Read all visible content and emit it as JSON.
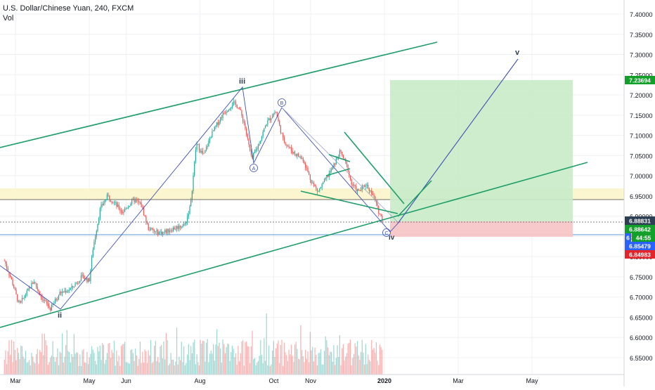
{
  "header": {
    "symbol_line": "U.S. Dollar/Chinese Yuan, 240, FXCM",
    "volume_label": "Vol"
  },
  "colors": {
    "grid": "#eef0f3",
    "up": "#26a69a",
    "down": "#ef5350",
    "text": "#131722",
    "channel": "#1e9e6a",
    "blue_line": "#3f51b5",
    "target_fill": "#c8ebc8",
    "stop_fill": "#f8c6c8",
    "zone_fill": "#fbf4c8",
    "label_green": "#13a02a",
    "label_dark": "#2d3f52",
    "label_blue": "#2962ff",
    "label_red": "#e3242b"
  },
  "chart_data": {
    "type": "candlestick",
    "instrument": "U.S. Dollar/Chinese Yuan",
    "interval": "240",
    "source": "FXCM",
    "ylim": [
      6.5,
      7.42
    ],
    "y_ticks": [
      "7.40000",
      "7.35000",
      "7.30000",
      "7.25000",
      "7.20000",
      "7.15000",
      "7.10000",
      "7.05000",
      "7.00000",
      "6.95000",
      "6.90000",
      "6.85000",
      "6.80000",
      "6.75000",
      "6.70000",
      "6.65000",
      "6.60000",
      "6.55000"
    ],
    "y_tick_values": [
      7.4,
      7.35,
      7.3,
      7.25,
      7.2,
      7.15,
      7.1,
      7.05,
      7.0,
      6.95,
      6.9,
      6.85,
      6.8,
      6.75,
      6.7,
      6.65,
      6.6,
      6.55
    ],
    "x_ticks": [
      "Mar",
      "May",
      "Jun",
      "Aug",
      "Oct",
      "Nov",
      "2020",
      "Mar",
      "May"
    ],
    "x_tick_months": [
      1,
      3,
      4,
      6,
      8,
      9,
      11,
      13,
      15
    ],
    "x_domain_months": [
      0.7,
      16.5
    ],
    "price_path": [
      [
        0.7,
        6.79
      ],
      [
        0.9,
        6.74
      ],
      [
        1.1,
        6.68
      ],
      [
        1.3,
        6.71
      ],
      [
        1.5,
        6.74
      ],
      [
        1.7,
        6.7
      ],
      [
        1.95,
        6.67
      ],
      [
        2.2,
        6.71
      ],
      [
        2.5,
        6.72
      ],
      [
        2.8,
        6.75
      ],
      [
        3.0,
        6.74
      ],
      [
        3.1,
        6.82
      ],
      [
        3.3,
        6.92
      ],
      [
        3.5,
        6.95
      ],
      [
        3.7,
        6.93
      ],
      [
        3.9,
        6.91
      ],
      [
        4.2,
        6.94
      ],
      [
        4.4,
        6.93
      ],
      [
        4.6,
        6.87
      ],
      [
        4.8,
        6.86
      ],
      [
        5.0,
        6.86
      ],
      [
        5.3,
        6.87
      ],
      [
        5.6,
        6.88
      ],
      [
        5.75,
        6.93
      ],
      [
        5.9,
        7.08
      ],
      [
        6.1,
        7.05
      ],
      [
        6.3,
        7.1
      ],
      [
        6.6,
        7.15
      ],
      [
        6.9,
        7.18
      ],
      [
        7.05,
        7.17
      ],
      [
        7.2,
        7.13
      ],
      [
        7.4,
        7.04
      ],
      [
        7.6,
        7.08
      ],
      [
        7.8,
        7.13
      ],
      [
        8.05,
        7.16
      ],
      [
        8.25,
        7.09
      ],
      [
        8.5,
        7.06
      ],
      [
        8.8,
        7.04
      ],
      [
        9.0,
        6.99
      ],
      [
        9.2,
        6.96
      ],
      [
        9.4,
        6.99
      ],
      [
        9.6,
        7.02
      ],
      [
        9.8,
        7.06
      ],
      [
        10.0,
        7.02
      ],
      [
        10.1,
        6.98
      ],
      [
        10.3,
        6.96
      ],
      [
        10.5,
        6.98
      ],
      [
        10.7,
        6.95
      ],
      [
        10.85,
        6.91
      ],
      [
        10.95,
        6.89
      ]
    ],
    "volume": {
      "note": "volume histogram at bottom, colored by candle direction"
    }
  },
  "price_labels": [
    {
      "text": "7.23694",
      "value": 7.23694,
      "color_key": "label_green"
    },
    {
      "text": "6.88831",
      "value": 6.88831,
      "color_key": "label_dark"
    },
    {
      "text": "6.88642",
      "value": 6.88642,
      "color_key": "label_green"
    },
    {
      "text": "6",
      "value": 6.8745,
      "color_key": "label_blue"
    },
    {
      "text": "44:55",
      "value": 6.8745,
      "color_key": "label_green"
    },
    {
      "text": "6.85479",
      "value": 6.85479,
      "color_key": "label_blue"
    },
    {
      "text": "6.84983",
      "value": 6.84983,
      "color_key": "label_red"
    }
  ],
  "wave_labels": {
    "iii": "iii",
    "ii": "ii",
    "v": "v",
    "iv": "iv",
    "A": "A",
    "B": "B",
    "C": "C"
  }
}
